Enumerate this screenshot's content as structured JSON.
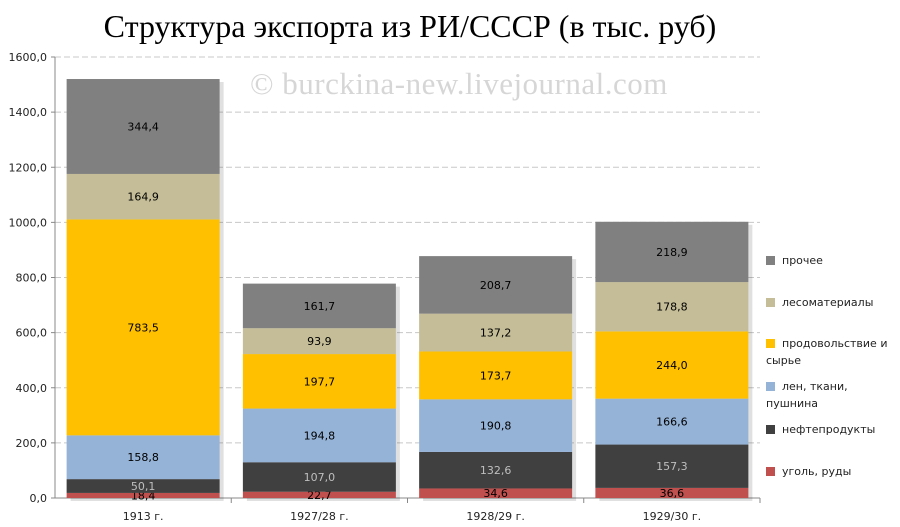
{
  "chart_data": {
    "type": "bar",
    "stacked": true,
    "title": "Структура экспорта из РИ/СССР (в тыс. руб)",
    "watermark": "© burckina-new.livejournal.com",
    "categories": [
      "1913 г.",
      "1927/28 г.",
      "1928/29 г.",
      "1929/30 г."
    ],
    "ylim": [
      0,
      1600
    ],
    "yticks": [
      "0,0",
      "200,0",
      "400,0",
      "600,0",
      "800,0",
      "1000,0",
      "1200,0",
      "1400,0",
      "1600,0"
    ],
    "grid": true,
    "legend_position": "right",
    "series": [
      {
        "name": "уголь, руды",
        "color": "#c0504d",
        "label_color": "#000000",
        "values": [
          18.4,
          22.7,
          34.6,
          36.6
        ],
        "labels": [
          "18,4",
          "22,7",
          "34,6",
          "36,6"
        ]
      },
      {
        "name": "нефтепродукты",
        "color": "#404040",
        "label_color": "#bfbfbf",
        "values": [
          50.1,
          107.0,
          132.6,
          157.3
        ],
        "labels": [
          "50,1",
          "107,0",
          "132,6",
          "157,3"
        ]
      },
      {
        "name": "лен, ткани, пушнина",
        "color": "#95b3d7",
        "label_color": "#000000",
        "values": [
          158.8,
          194.8,
          190.8,
          166.6
        ],
        "labels": [
          "158,8",
          "194,8",
          "190,8",
          "166,6"
        ]
      },
      {
        "name": "продовольствие и сырье",
        "color": "#ffc000",
        "label_color": "#000000",
        "values": [
          783.5,
          197.7,
          173.7,
          244.0
        ],
        "labels": [
          "783,5",
          "197,7",
          "173,7",
          "244,0"
        ]
      },
      {
        "name": "лесоматериалы",
        "color": "#c4bd97",
        "label_color": "#000000",
        "values": [
          164.9,
          93.9,
          137.2,
          178.8
        ],
        "labels": [
          "164,9",
          "93,9",
          "137,2",
          "178,8"
        ]
      },
      {
        "name": "прочее",
        "color": "#808080",
        "label_color": "#000000",
        "values": [
          344.4,
          161.7,
          208.7,
          218.9
        ],
        "labels": [
          "344,4",
          "161,7",
          "208,7",
          "218,9"
        ]
      }
    ]
  }
}
